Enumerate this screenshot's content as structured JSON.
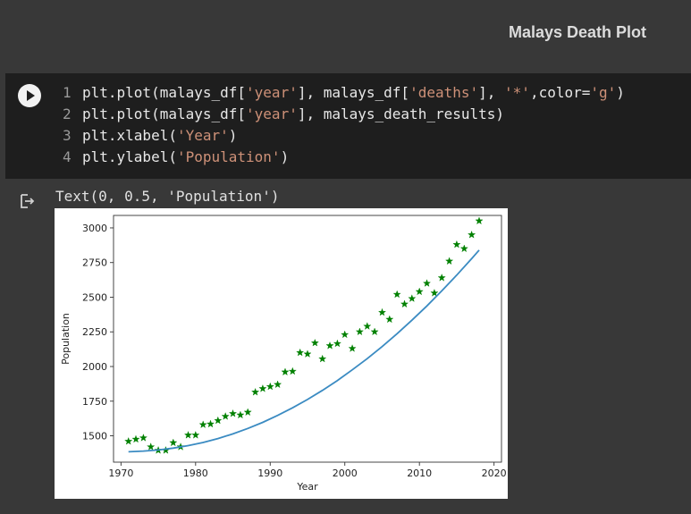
{
  "section": {
    "title": "Malays Death Plot"
  },
  "code_lines": [
    {
      "num": "1",
      "parts": [
        {
          "t": "plt.plot(malays_df[",
          "s": 0
        },
        {
          "t": "'year'",
          "s": 1
        },
        {
          "t": "], malays_df[",
          "s": 0
        },
        {
          "t": "'deaths'",
          "s": 1
        },
        {
          "t": "], ",
          "s": 0
        },
        {
          "t": "'*'",
          "s": 1
        },
        {
          "t": ",color=",
          "s": 0
        },
        {
          "t": "'g'",
          "s": 1
        },
        {
          "t": ")",
          "s": 0
        }
      ]
    },
    {
      "num": "2",
      "parts": [
        {
          "t": "plt.plot(malays_df[",
          "s": 0
        },
        {
          "t": "'year'",
          "s": 1
        },
        {
          "t": "], malays_death_results)",
          "s": 0
        }
      ]
    },
    {
      "num": "3",
      "parts": [
        {
          "t": "plt.xlabel(",
          "s": 0
        },
        {
          "t": "'Year'",
          "s": 1
        },
        {
          "t": ")",
          "s": 0
        }
      ]
    },
    {
      "num": "4",
      "parts": [
        {
          "t": "plt.ylabel(",
          "s": 0
        },
        {
          "t": "'Population'",
          "s": 1
        },
        {
          "t": ")",
          "s": 0
        }
      ]
    }
  ],
  "output": {
    "text": "Text(0, 0.5, 'Population')"
  },
  "icons": {
    "run": "play-icon",
    "output": "output-arrow-icon"
  },
  "chart_data": {
    "type": "line",
    "xlabel": "Year",
    "ylabel": "Population",
    "xlim": [
      1969,
      2021
    ],
    "ylim": [
      1310,
      3090
    ],
    "xticks": [
      1970,
      1980,
      1990,
      2000,
      2010,
      2020
    ],
    "yticks": [
      1500,
      1750,
      2000,
      2250,
      2500,
      2750,
      3000
    ],
    "grid": false,
    "series": [
      {
        "style": "markers",
        "color": "#008000",
        "x": [
          1971,
          1972,
          1973,
          1974,
          1975,
          1976,
          1977,
          1978,
          1979,
          1980,
          1981,
          1982,
          1983,
          1984,
          1985,
          1986,
          1987,
          1988,
          1989,
          1990,
          1991,
          1992,
          1993,
          1994,
          1995,
          1996,
          1997,
          1998,
          1999,
          2000,
          2001,
          2002,
          2003,
          2004,
          2005,
          2006,
          2007,
          2008,
          2009,
          2010,
          2011,
          2012,
          2013,
          2014,
          2015,
          2016,
          2017,
          2018
        ],
        "y": [
          1460,
          1475,
          1485,
          1420,
          1395,
          1395,
          1450,
          1420,
          1505,
          1505,
          1580,
          1585,
          1610,
          1640,
          1660,
          1650,
          1670,
          1815,
          1840,
          1855,
          1870,
          1960,
          1965,
          2100,
          2090,
          2170,
          2055,
          2150,
          2165,
          2230,
          2130,
          2250,
          2290,
          2250,
          2390,
          2340,
          2520,
          2450,
          2490,
          2540,
          2600,
          2530,
          2640,
          2760,
          2880,
          2850,
          2950,
          3050
        ]
      },
      {
        "style": "line",
        "color": "#3b8bc2",
        "x": [
          1971,
          1973,
          1975,
          1977,
          1979,
          1981,
          1983,
          1985,
          1987,
          1989,
          1991,
          1993,
          1995,
          1997,
          1999,
          2001,
          2003,
          2005,
          2007,
          2009,
          2011,
          2013,
          2015,
          2017,
          2018
        ],
        "y": [
          1385,
          1390,
          1398,
          1411,
          1429,
          1452,
          1480,
          1514,
          1553,
          1597,
          1647,
          1702,
          1762,
          1828,
          1899,
          1976,
          2057,
          2144,
          2237,
          2334,
          2437,
          2546,
          2659,
          2778,
          2840
        ]
      }
    ]
  }
}
